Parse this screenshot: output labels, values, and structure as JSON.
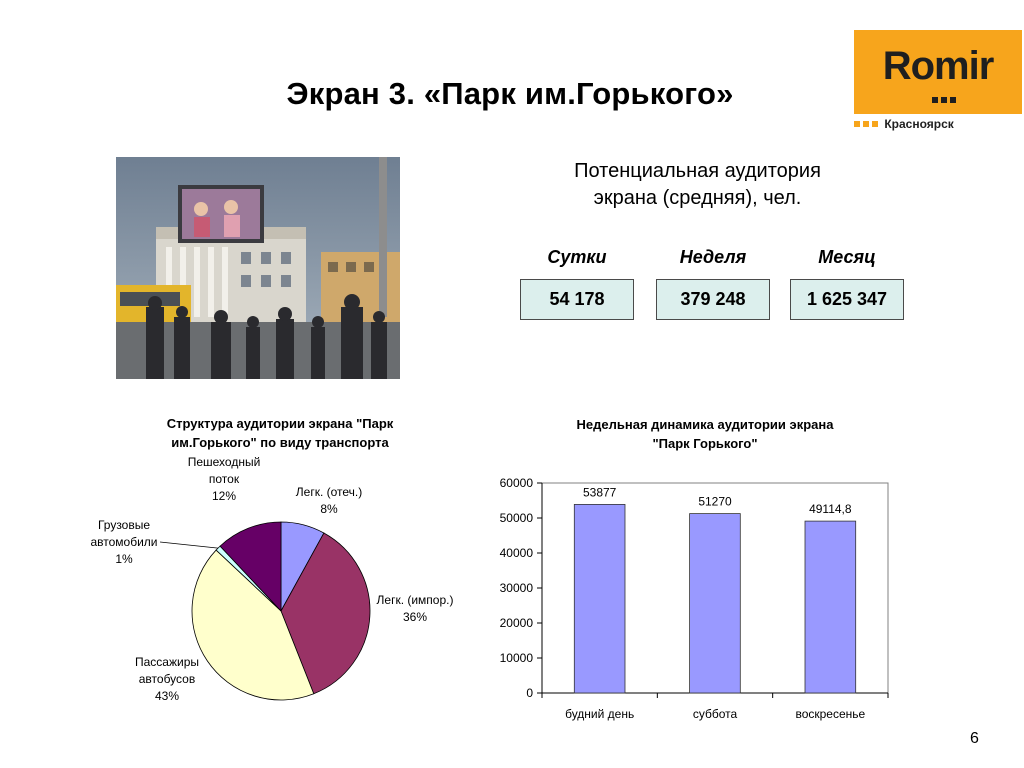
{
  "slide": {
    "title": "Экран 3. «Парк им.Горького»",
    "page_number": "6"
  },
  "logo": {
    "brand": "Romir",
    "city": "Красноярск",
    "color": "#f7a51c"
  },
  "audience": {
    "title_line1": "Потенциальная аудитория",
    "title_line2": "экрана (средняя), чел.",
    "periods": [
      {
        "label": "Сутки",
        "value": "54 178"
      },
      {
        "label": "Неделя",
        "value": "379 248"
      },
      {
        "label": "Месяц",
        "value": "1 625 347"
      }
    ],
    "box_color": "#dcefed"
  },
  "chart_data": [
    {
      "type": "pie",
      "title_line1": "Структура аудитории экрана \"Парк",
      "title_line2": "им.Горького\" по виду транспорта",
      "slices": [
        {
          "label": [
            "Легк. (отеч.)",
            "8%"
          ],
          "value": 8,
          "color": "#9999ff"
        },
        {
          "label": [
            "Легк. (импор.)",
            "36%"
          ],
          "value": 36,
          "color": "#993366"
        },
        {
          "label": [
            "Пассажиры",
            "автобусов",
            "43%"
          ],
          "value": 43,
          "color": "#ffffcc"
        },
        {
          "label": [
            "Грузовые",
            "автомобили",
            "1%"
          ],
          "value": 1,
          "color": "#ccffff"
        },
        {
          "label": [
            "Пешеходный",
            "поток",
            "12%"
          ],
          "value": 12,
          "color": "#660066"
        }
      ]
    },
    {
      "type": "bar",
      "title_line1": "Недельная динамика аудитории экрана",
      "title_line2": "\"Парк Горького\"",
      "categories": [
        "будний день",
        "суббота",
        "воскресенье"
      ],
      "values": [
        53877,
        51270,
        49114.8
      ],
      "data_labels": [
        "53877",
        "51270",
        "49114,8"
      ],
      "ylim": [
        0,
        60000
      ],
      "yticks": [
        0,
        10000,
        20000,
        30000,
        40000,
        50000,
        60000
      ],
      "bar_color": "#9999ff"
    }
  ]
}
